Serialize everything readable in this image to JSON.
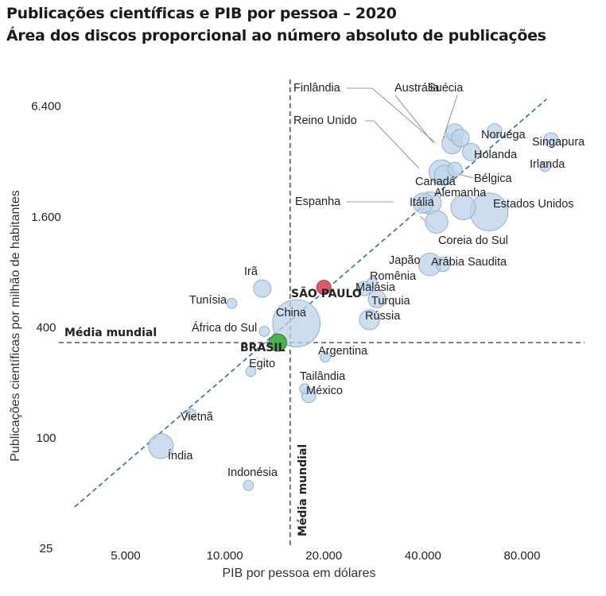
{
  "title": "Publicações científicas e PIB por pessoa – 2020",
  "subtitle": "Área dos discos proporcional ao número absoluto de publicações",
  "chart_data": {
    "type": "scatter",
    "xlabel": "PIB por pessoa em dólares",
    "ylabel": "Publicações científicas por milhão de habitantes",
    "xscale": "log",
    "yscale": "log",
    "xlim": [
      3000,
      130000
    ],
    "ylim": [
      25,
      10000
    ],
    "xticks": [
      {
        "value": 5000,
        "label": "5.000"
      },
      {
        "value": 10000,
        "label": "10.000"
      },
      {
        "value": 20000,
        "label": "20.000"
      },
      {
        "value": 40000,
        "label": "40.000"
      },
      {
        "value": 80000,
        "label": "80.000"
      }
    ],
    "yticks": [
      {
        "value": 25,
        "label": "25"
      },
      {
        "value": 100,
        "label": "100"
      },
      {
        "value": 400,
        "label": "400"
      },
      {
        "value": 1600,
        "label": "1.600"
      },
      {
        "value": 6400,
        "label": "6.400"
      }
    ],
    "mean_x": {
      "value": 15800,
      "label": "Média mundial"
    },
    "mean_y": {
      "value": 330,
      "label": "Média mundial"
    },
    "trendline": {
      "x": [
        3500,
        95000
      ],
      "y": [
        42,
        7000
      ]
    },
    "points": [
      {
        "name": "Finlândia",
        "x": 50000,
        "y": 4600,
        "size": 3
      },
      {
        "name": "Austrália",
        "x": 49000,
        "y": 4000,
        "size": 4
      },
      {
        "name": "Suécia",
        "x": 52000,
        "y": 4300,
        "size": 3
      },
      {
        "name": "Reino Unido",
        "x": 45500,
        "y": 2800,
        "size": 6
      },
      {
        "name": "Noruega",
        "x": 66000,
        "y": 4700,
        "size": 2
      },
      {
        "name": "Singapura",
        "x": 98000,
        "y": 4200,
        "size": 2
      },
      {
        "name": "Holanda",
        "x": 56000,
        "y": 3600,
        "size": 3
      },
      {
        "name": "Irlanda",
        "x": 94000,
        "y": 3000,
        "size": 1
      },
      {
        "name": "Bélgica",
        "x": 50000,
        "y": 2900,
        "size": 2
      },
      {
        "name": "Canadá",
        "x": 46500,
        "y": 2700,
        "size": 4
      },
      {
        "name": "Alemanha",
        "x": 53000,
        "y": 1800,
        "size": 6
      },
      {
        "name": "Estados Unidos",
        "x": 63500,
        "y": 1700,
        "size": 14
      },
      {
        "name": "Espanha",
        "x": 40000,
        "y": 1900,
        "size": 4
      },
      {
        "name": "Itália",
        "x": 42000,
        "y": 1900,
        "size": 5
      },
      {
        "name": "Coreia do Sul",
        "x": 44000,
        "y": 1500,
        "size": 5
      },
      {
        "name": "Japão",
        "x": 42000,
        "y": 880,
        "size": 5
      },
      {
        "name": "Arábia Saudita",
        "x": 46000,
        "y": 880,
        "size": 2
      },
      {
        "name": "Romênia",
        "x": 28000,
        "y": 700,
        "size": 1
      },
      {
        "name": "Malásia",
        "x": 26500,
        "y": 650,
        "size": 2
      },
      {
        "name": "Turquia",
        "x": 29000,
        "y": 570,
        "size": 3
      },
      {
        "name": "Rússia",
        "x": 27500,
        "y": 440,
        "size": 4
      },
      {
        "name": "Argentina",
        "x": 20200,
        "y": 275,
        "size": 1
      },
      {
        "name": "Tailândia",
        "x": 17500,
        "y": 185,
        "size": 1
      },
      {
        "name": "México",
        "x": 18000,
        "y": 170,
        "size": 2
      },
      {
        "name": "Irã",
        "x": 13000,
        "y": 650,
        "size": 3
      },
      {
        "name": "Tunísia",
        "x": 10500,
        "y": 540,
        "size": 1
      },
      {
        "name": "África do Sul",
        "x": 13200,
        "y": 380,
        "size": 1
      },
      {
        "name": "China",
        "x": 16500,
        "y": 420,
        "size": 22
      },
      {
        "name": "SÃO PAULO",
        "x": 20000,
        "y": 660,
        "size": 2
      },
      {
        "name": "BRASIL",
        "x": 14500,
        "y": 330,
        "size": 3
      },
      {
        "name": "Egito",
        "x": 12000,
        "y": 230,
        "size": 1
      },
      {
        "name": "Vietnã",
        "x": 7900,
        "y": 135,
        "size": 1
      },
      {
        "name": "Índia",
        "x": 6400,
        "y": 90,
        "size": 6
      },
      {
        "name": "Indonésia",
        "x": 11800,
        "y": 55,
        "size": 1
      }
    ]
  }
}
